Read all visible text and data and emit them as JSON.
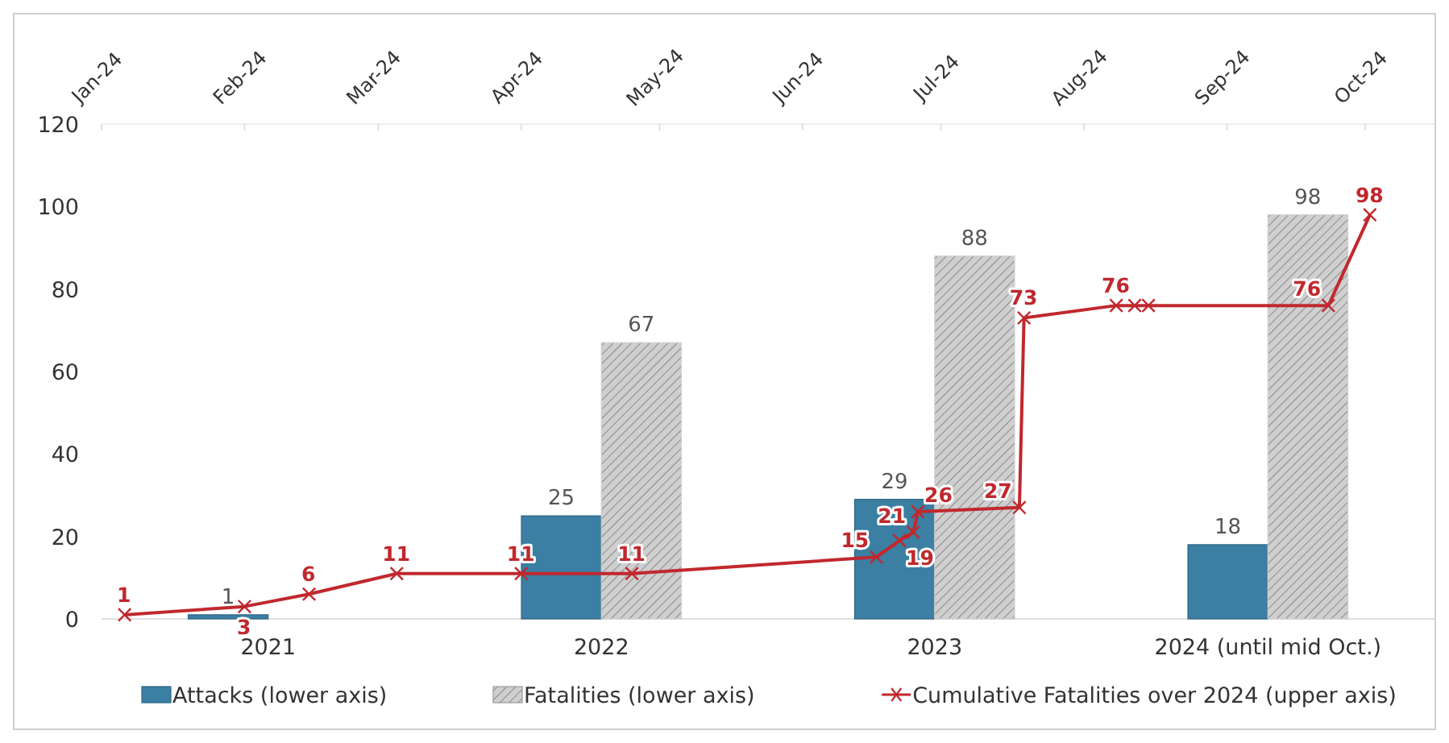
{
  "chart_data": {
    "type": "bar",
    "categories": [
      "2021",
      "2022",
      "2023",
      "2024 (until mid Oct.)"
    ],
    "series": [
      {
        "name": "Attacks (lower axis)",
        "color": "#3b7fa3",
        "values": [
          1,
          25,
          29,
          18
        ]
      },
      {
        "name": "Fatalities (lower axis)",
        "color": "#cfcfcf",
        "values": [
          null,
          67,
          88,
          98
        ]
      },
      {
        "name": "Cumulative Fatalities over 2024 (upper axis)",
        "type": "line",
        "axis": "x2",
        "color": "#c0282d",
        "marker": "cross",
        "x": [
          "2024-01-06",
          "2024-02-01",
          "2024-02-15",
          "2024-03-05",
          "2024-04-01",
          "2024-04-25",
          "2024-06-17",
          "2024-06-22",
          "2024-06-25",
          "2024-06-26",
          "2024-07-18",
          "2024-07-19",
          "2024-08-08",
          "2024-08-12",
          "2024-08-15",
          "2024-09-23",
          "2024-10-02"
        ],
        "values": [
          1,
          3,
          6,
          11,
          11,
          11,
          15,
          19,
          21,
          26,
          27,
          73,
          76,
          76,
          76,
          76,
          98
        ],
        "value_labels": [
          "1",
          "3",
          "6",
          "11",
          "11",
          "11",
          "15",
          "19",
          "21",
          "26",
          "27",
          "73",
          "76",
          null,
          null,
          "76",
          "98"
        ]
      }
    ],
    "ylim": [
      0,
      120
    ],
    "yticks": [
      0,
      20,
      40,
      60,
      80,
      100,
      120
    ],
    "x2lim": [
      "2024-01-01",
      "2024-10-16"
    ],
    "x2ticks": [
      {
        "value": "2024-01-01",
        "label": "Jan-24"
      },
      {
        "value": "2024-02-01",
        "label": "Feb-24"
      },
      {
        "value": "2024-03-01",
        "label": "Mar-24"
      },
      {
        "value": "2024-04-01",
        "label": "Apr-24"
      },
      {
        "value": "2024-05-01",
        "label": "May-24"
      },
      {
        "value": "2024-06-01",
        "label": "Jun-24"
      },
      {
        "value": "2024-07-01",
        "label": "Jul-24"
      },
      {
        "value": "2024-08-01",
        "label": "Aug-24"
      },
      {
        "value": "2024-09-01",
        "label": "Sep-24"
      },
      {
        "value": "2024-10-01",
        "label": "Oct-24"
      }
    ],
    "data_labels": true,
    "legend": "bottom",
    "grid": false
  }
}
